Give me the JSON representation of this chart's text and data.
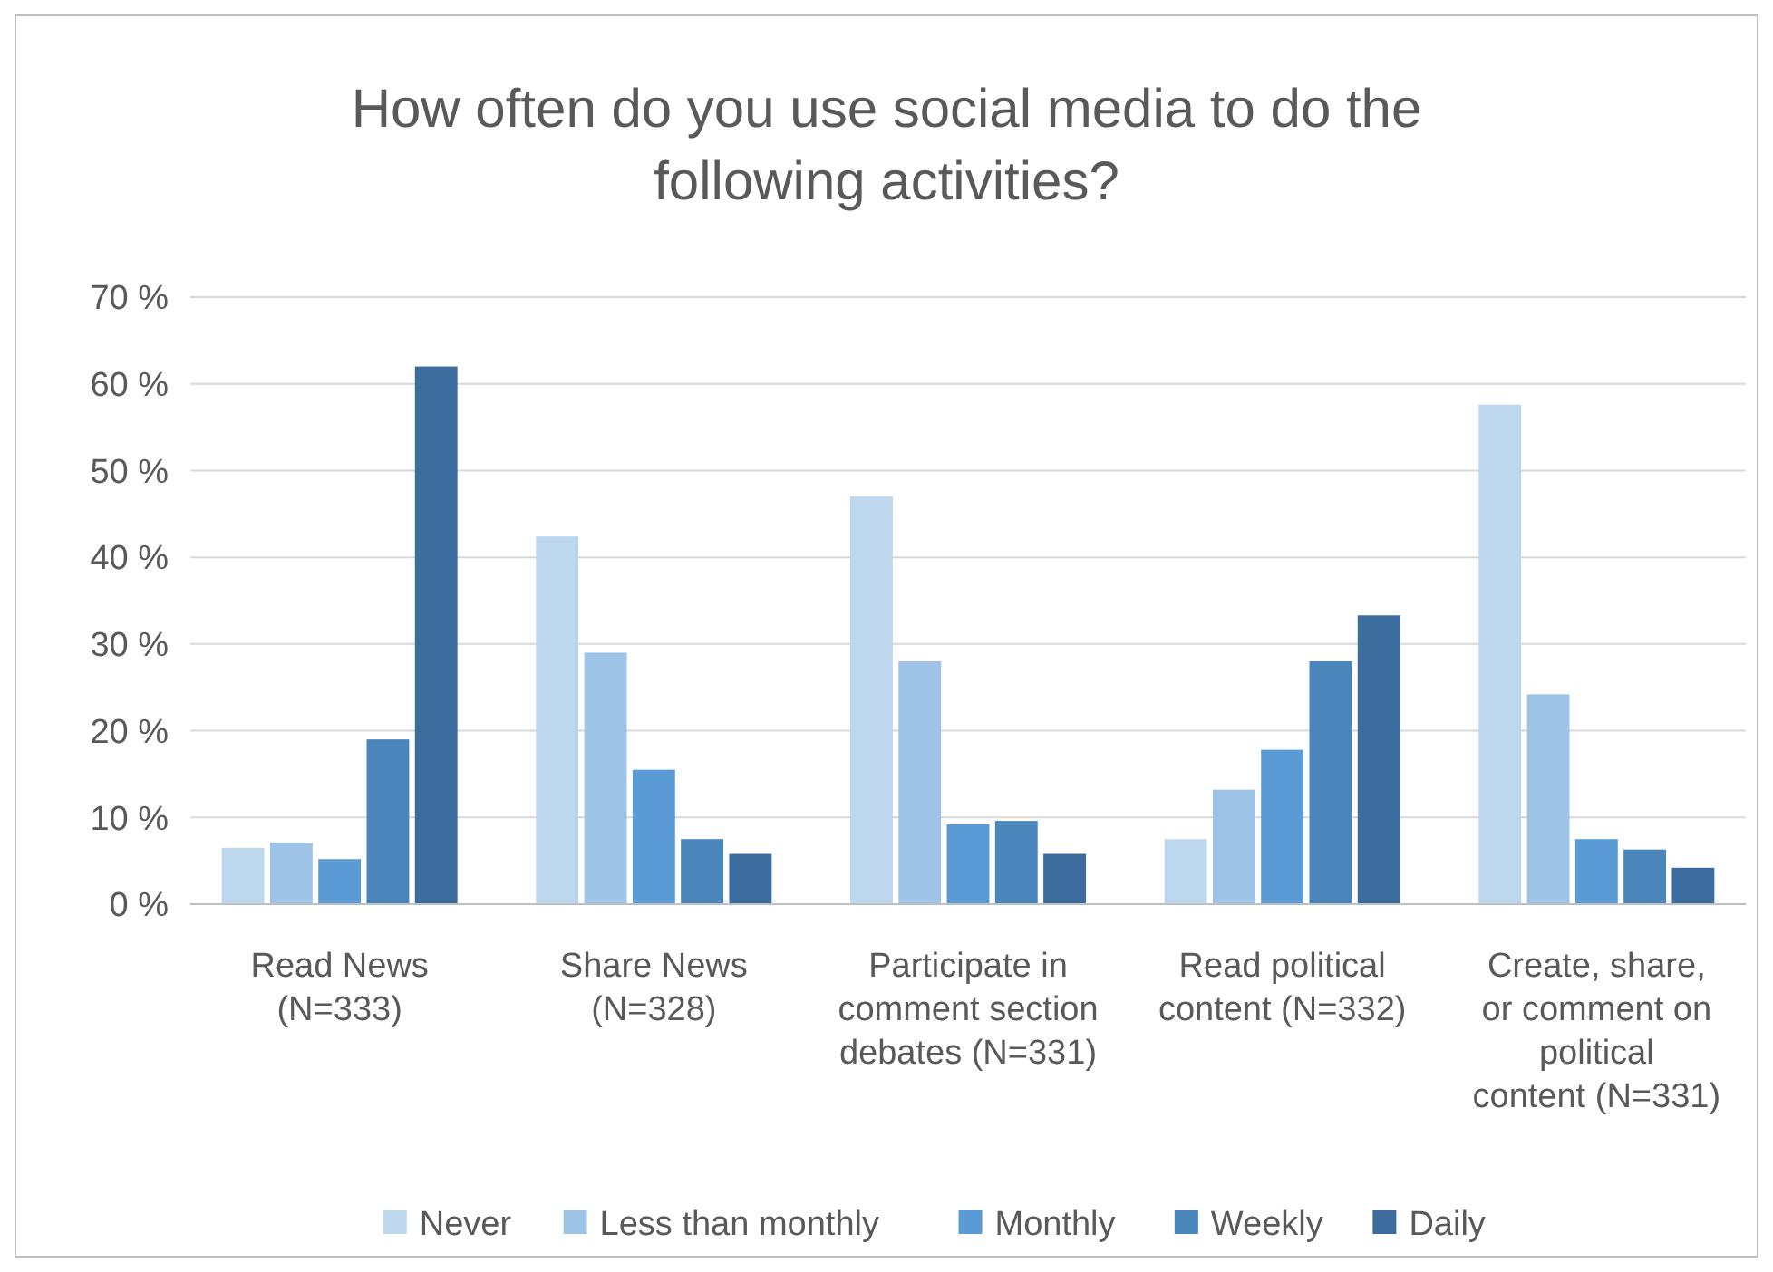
{
  "chart_data": {
    "type": "bar",
    "title": "How often do you use social media to do the following activities?",
    "categories": [
      "Read News (N=333)",
      "Share News (N=328)",
      "Participate in comment section debates (N=331)",
      "Read political content (N=332)",
      "Create, share, or comment on political content (N=331)"
    ],
    "series": [
      {
        "name": "Never",
        "color": "#bdd7ee",
        "values": [
          6.5,
          42.4,
          47.0,
          7.5,
          57.6
        ]
      },
      {
        "name": "Less than monthly",
        "color": "#9dc3e6",
        "values": [
          7.1,
          29.0,
          28.0,
          13.2,
          24.2
        ]
      },
      {
        "name": "Monthly",
        "color": "#5b9bd5",
        "values": [
          5.2,
          15.5,
          9.2,
          17.8,
          7.5
        ]
      },
      {
        "name": "Weekly",
        "color": "#4a86bb",
        "values": [
          19.0,
          7.5,
          9.6,
          28.0,
          6.3
        ]
      },
      {
        "name": "Daily",
        "color": "#3d6d9e",
        "values": [
          62.0,
          5.8,
          5.8,
          33.3,
          4.2
        ]
      }
    ],
    "ylim": [
      0,
      70
    ],
    "yticks": [
      {
        "value": 0,
        "label": "0 %"
      },
      {
        "value": 10,
        "label": "10 %"
      },
      {
        "value": 20,
        "label": "20 %"
      },
      {
        "value": 30,
        "label": "30 %"
      },
      {
        "value": 40,
        "label": "40 %"
      },
      {
        "value": 50,
        "label": "50 %"
      },
      {
        "value": 60,
        "label": "60 %"
      },
      {
        "value": 70,
        "label": "70 %"
      }
    ],
    "grid": "y",
    "legend": "bottom"
  }
}
